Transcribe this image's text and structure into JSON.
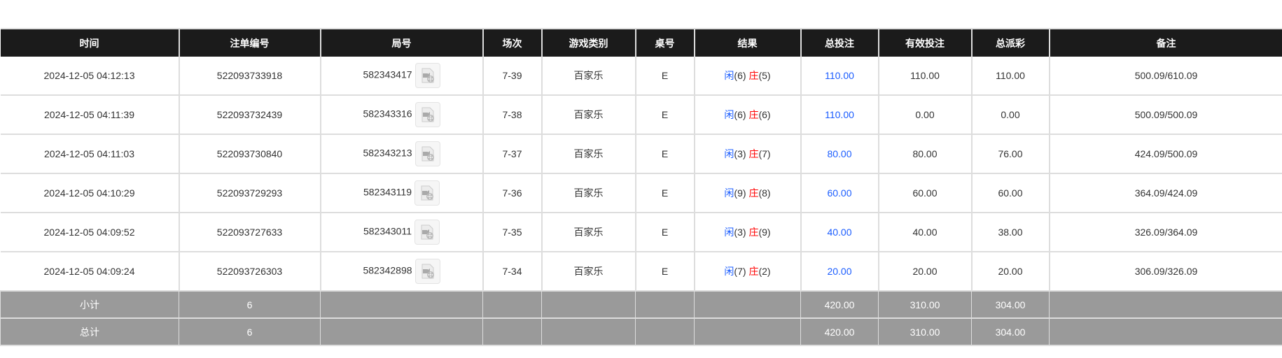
{
  "headers": [
    "时间",
    "注单编号",
    "局号",
    "场次",
    "游戏类别",
    "桌号",
    "结果",
    "总投注",
    "有效投注",
    "总派彩",
    "备注"
  ],
  "rows": [
    {
      "time": "2024-12-05 04:12:13",
      "order": "522093733918",
      "round": "582343417",
      "session": "7-39",
      "game": "百家乐",
      "table": "E",
      "player": "闲",
      "player_pts": "(6)",
      "banker": "庄",
      "banker_pts": "(5)",
      "bet": "110.00",
      "valid": "110.00",
      "payout": "110.00",
      "note": "500.09/610.09"
    },
    {
      "time": "2024-12-05 04:11:39",
      "order": "522093732439",
      "round": "582343316",
      "session": "7-38",
      "game": "百家乐",
      "table": "E",
      "player": "闲",
      "player_pts": "(6)",
      "banker": "庄",
      "banker_pts": "(6)",
      "bet": "110.00",
      "valid": "0.00",
      "payout": "0.00",
      "note": "500.09/500.09"
    },
    {
      "time": "2024-12-05 04:11:03",
      "order": "522093730840",
      "round": "582343213",
      "session": "7-37",
      "game": "百家乐",
      "table": "E",
      "player": "闲",
      "player_pts": "(3)",
      "banker": "庄",
      "banker_pts": "(7)",
      "bet": "80.00",
      "valid": "80.00",
      "payout": "76.00",
      "note": "424.09/500.09"
    },
    {
      "time": "2024-12-05 04:10:29",
      "order": "522093729293",
      "round": "582343119",
      "session": "7-36",
      "game": "百家乐",
      "table": "E",
      "player": "闲",
      "player_pts": "(9)",
      "banker": "庄",
      "banker_pts": "(8)",
      "bet": "60.00",
      "valid": "60.00",
      "payout": "60.00",
      "note": "364.09/424.09"
    },
    {
      "time": "2024-12-05 04:09:52",
      "order": "522093727633",
      "round": "582343011",
      "session": "7-35",
      "game": "百家乐",
      "table": "E",
      "player": "闲",
      "player_pts": "(3)",
      "banker": "庄",
      "banker_pts": "(9)",
      "bet": "40.00",
      "valid": "40.00",
      "payout": "38.00",
      "note": "326.09/364.09"
    },
    {
      "time": "2024-12-05 04:09:24",
      "order": "522093726303",
      "round": "582342898",
      "session": "7-34",
      "game": "百家乐",
      "table": "E",
      "player": "闲",
      "player_pts": "(7)",
      "banker": "庄",
      "banker_pts": "(2)",
      "bet": "20.00",
      "valid": "20.00",
      "payout": "20.00",
      "note": "306.09/326.09"
    }
  ],
  "subtotal": {
    "label": "小计",
    "count": "6",
    "bet": "420.00",
    "valid": "310.00",
    "payout": "304.00"
  },
  "total": {
    "label": "总计",
    "count": "6",
    "bet": "420.00",
    "valid": "310.00",
    "payout": "304.00"
  },
  "colors": {
    "header_bg": "#1b1b1b",
    "player": "#1a5cff",
    "banker": "#ff0000",
    "sum_bg": "#9a9a9a"
  },
  "icons": {
    "replay": "video-replay-icon"
  }
}
